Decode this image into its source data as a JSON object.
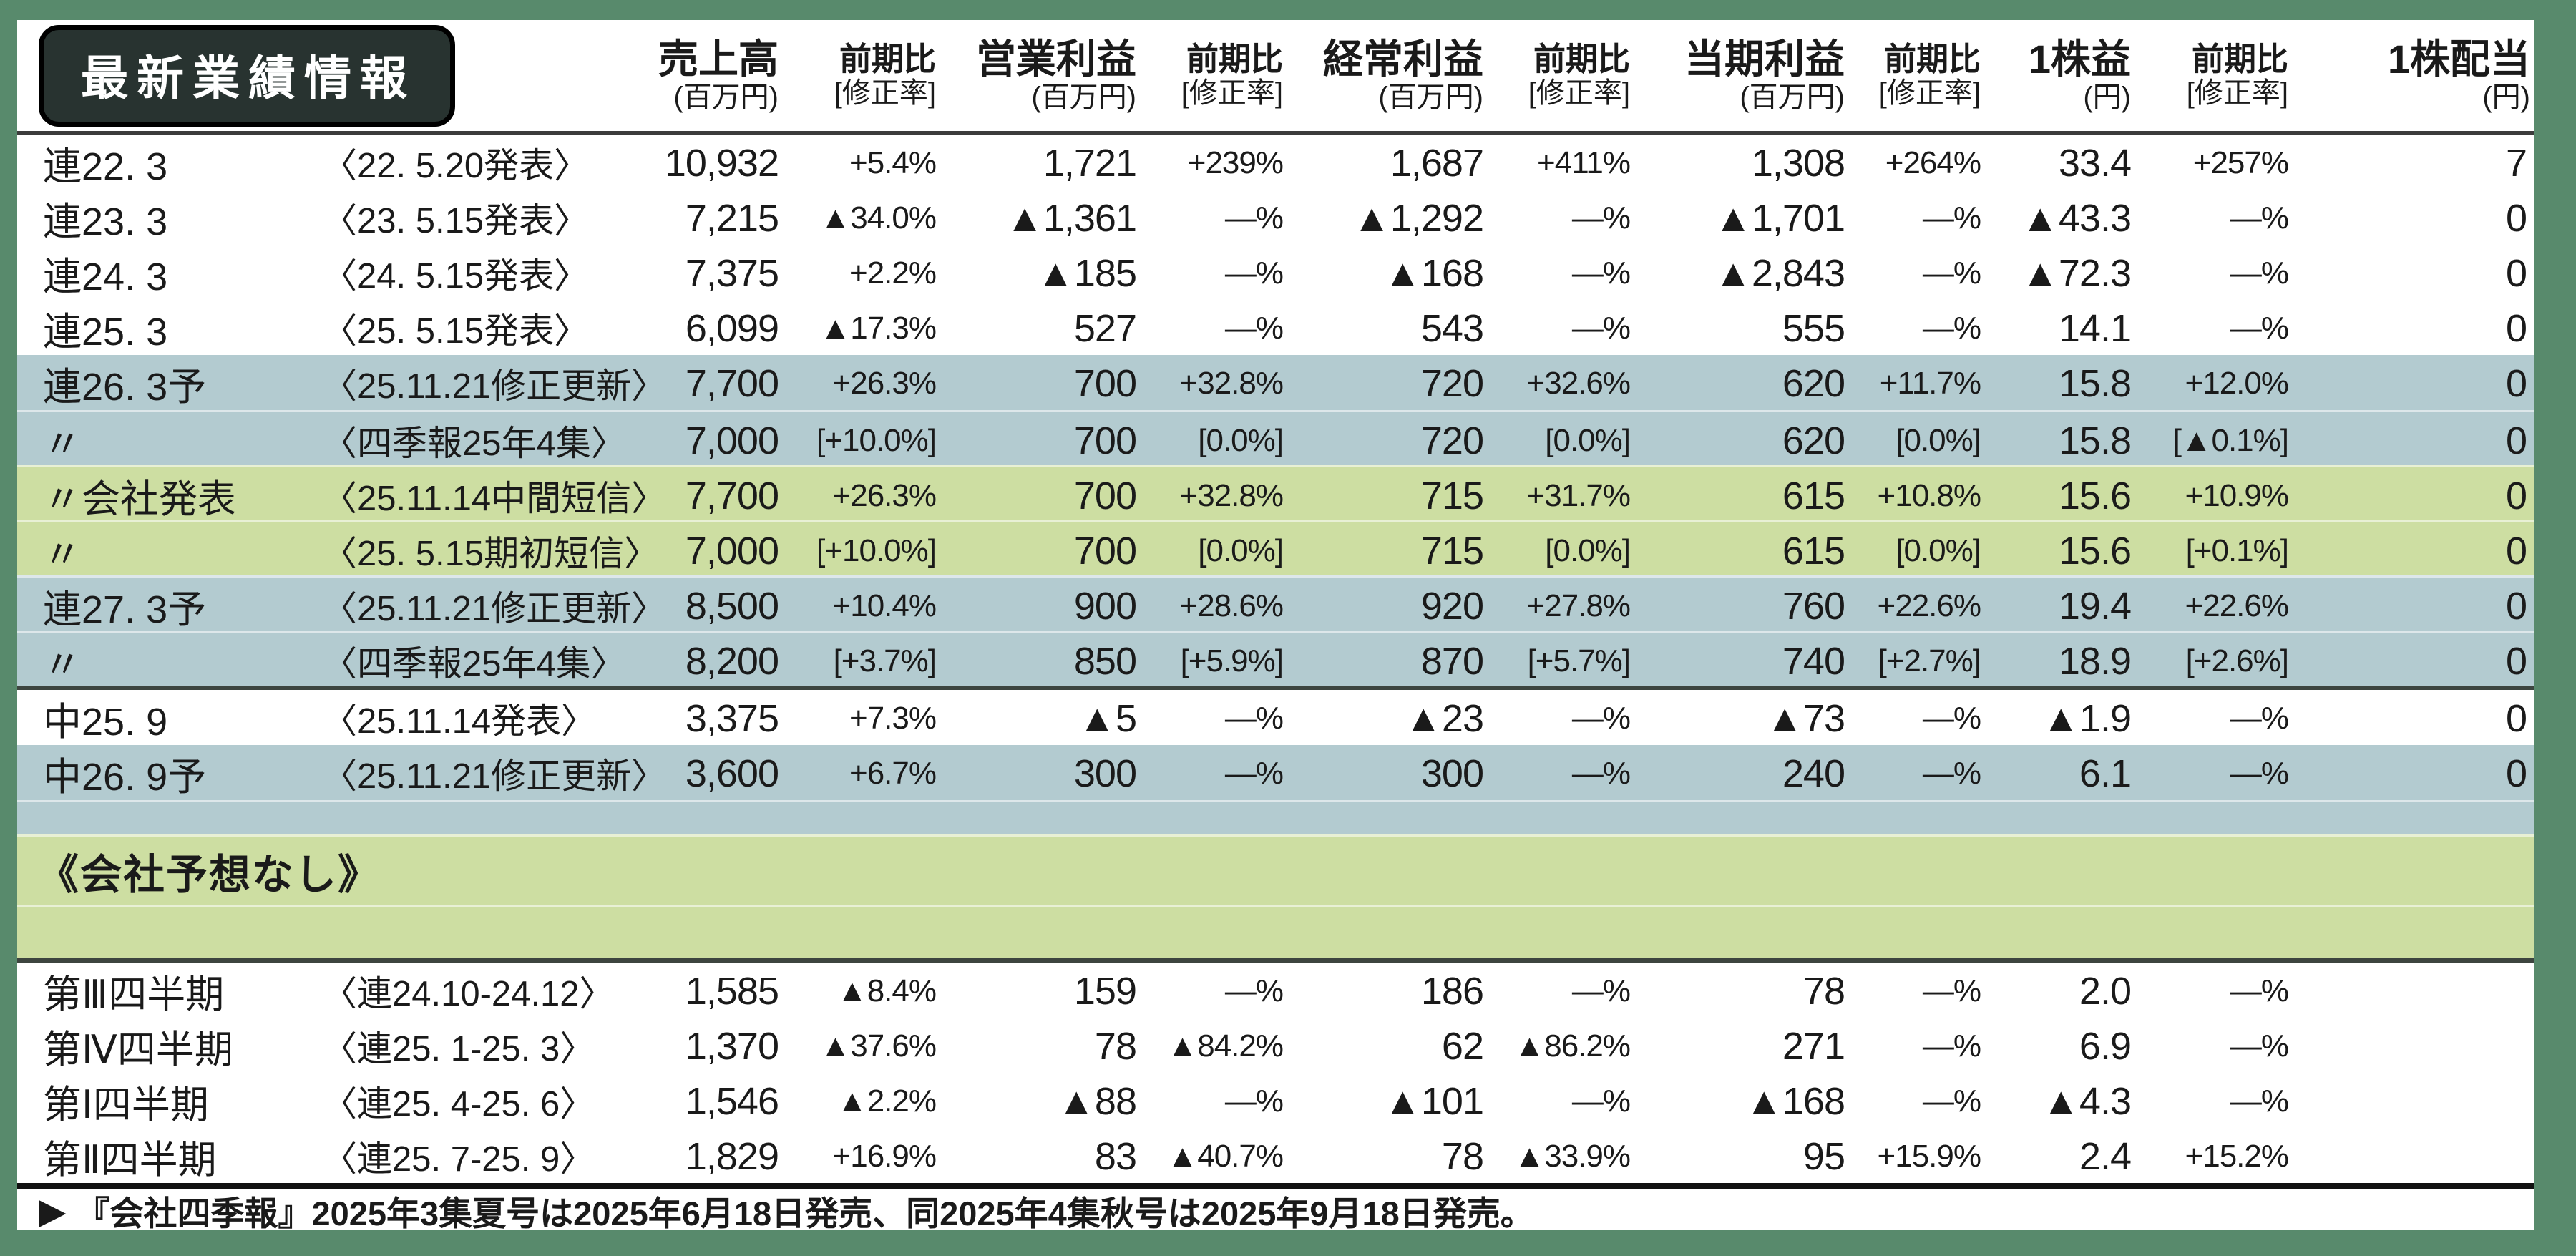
{
  "header": {
    "badge": "最新業績情報",
    "groups": [
      {
        "title": "売上高",
        "unit": "(百万円)"
      },
      {
        "title": "前期比",
        "unit": "[修正率]"
      },
      {
        "title": "営業利益",
        "unit": "(百万円)"
      },
      {
        "title": "前期比",
        "unit": "[修正率]"
      },
      {
        "title": "経常利益",
        "unit": "(百万円)"
      },
      {
        "title": "前期比",
        "unit": "[修正率]"
      },
      {
        "title": "当期利益",
        "unit": "(百万円)"
      },
      {
        "title": "前期比",
        "unit": "[修正率]"
      },
      {
        "title": "1株益",
        "unit": "(円)"
      },
      {
        "title": "前期比",
        "unit": "[修正率]"
      },
      {
        "title": "1株配当",
        "unit": "(円)"
      }
    ]
  },
  "rows": [
    {
      "label": "連22. 3",
      "date": "〈22. 5.20発表〉",
      "sales": "10,932",
      "sales_yoy": "+5.4%",
      "op": "1,721",
      "op_yoy": "+239%",
      "ord": "1,687",
      "ord_yoy": "+411%",
      "net": "1,308",
      "net_yoy": "+264%",
      "eps": "33.4",
      "eps_yoy": "+257%",
      "div": "7",
      "bg": "white"
    },
    {
      "label": "連23. 3",
      "date": "〈23. 5.15発表〉",
      "sales": "7,215",
      "sales_yoy": "▲34.0%",
      "op": "▲1,361",
      "op_yoy": "—%",
      "ord": "▲1,292",
      "ord_yoy": "—%",
      "net": "▲1,701",
      "net_yoy": "—%",
      "eps": "▲43.3",
      "eps_yoy": "—%",
      "div": "0",
      "bg": "white"
    },
    {
      "label": "連24. 3",
      "date": "〈24. 5.15発表〉",
      "sales": "7,375",
      "sales_yoy": "+2.2%",
      "op": "▲185",
      "op_yoy": "—%",
      "ord": "▲168",
      "ord_yoy": "—%",
      "net": "▲2,843",
      "net_yoy": "—%",
      "eps": "▲72.3",
      "eps_yoy": "—%",
      "div": "0",
      "bg": "white"
    },
    {
      "label": "連25. 3",
      "date": "〈25. 5.15発表〉",
      "sales": "6,099",
      "sales_yoy": "▲17.3%",
      "op": "527",
      "op_yoy": "—%",
      "ord": "543",
      "ord_yoy": "—%",
      "net": "555",
      "net_yoy": "—%",
      "eps": "14.1",
      "eps_yoy": "—%",
      "div": "0",
      "bg": "white"
    },
    {
      "label": "連26. 3予",
      "date": "〈25.11.21修正更新〉",
      "sales": "7,700",
      "sales_yoy": "+26.3%",
      "op": "700",
      "op_yoy": "+32.8%",
      "ord": "720",
      "ord_yoy": "+32.6%",
      "net": "620",
      "net_yoy": "+11.7%",
      "eps": "15.8",
      "eps_yoy": "+12.0%",
      "div": "0",
      "bg": "blue"
    },
    {
      "label": "〃",
      "date": "〈四季報25年4集〉",
      "sales": "7,000",
      "sales_yoy": "[+10.0%]",
      "op": "700",
      "op_yoy": "[0.0%]",
      "ord": "720",
      "ord_yoy": "[0.0%]",
      "net": "620",
      "net_yoy": "[0.0%]",
      "eps": "15.8",
      "eps_yoy": "[▲0.1%]",
      "div": "0",
      "bg": "blue",
      "sep": true
    },
    {
      "label": "〃会社発表",
      "date": "〈25.11.14中間短信〉",
      "sales": "7,700",
      "sales_yoy": "+26.3%",
      "op": "700",
      "op_yoy": "+32.8%",
      "ord": "715",
      "ord_yoy": "+31.7%",
      "net": "615",
      "net_yoy": "+10.8%",
      "eps": "15.6",
      "eps_yoy": "+10.9%",
      "div": "0",
      "bg": "green",
      "sep": true
    },
    {
      "label": "〃",
      "date": "〈25. 5.15期初短信〉",
      "sales": "7,000",
      "sales_yoy": "[+10.0%]",
      "op": "700",
      "op_yoy": "[0.0%]",
      "ord": "715",
      "ord_yoy": "[0.0%]",
      "net": "615",
      "net_yoy": "[0.0%]",
      "eps": "15.6",
      "eps_yoy": "[+0.1%]",
      "div": "0",
      "bg": "green",
      "sep": true
    },
    {
      "label": "連27. 3予",
      "date": "〈25.11.21修正更新〉",
      "sales": "8,500",
      "sales_yoy": "+10.4%",
      "op": "900",
      "op_yoy": "+28.6%",
      "ord": "920",
      "ord_yoy": "+27.8%",
      "net": "760",
      "net_yoy": "+22.6%",
      "eps": "19.4",
      "eps_yoy": "+22.6%",
      "div": "0",
      "bg": "blue",
      "sep": true
    },
    {
      "label": "〃",
      "date": "〈四季報25年4集〉",
      "sales": "8,200",
      "sales_yoy": "[+3.7%]",
      "op": "850",
      "op_yoy": "[+5.9%]",
      "ord": "870",
      "ord_yoy": "[+5.7%]",
      "net": "740",
      "net_yoy": "[+2.7%]",
      "eps": "18.9",
      "eps_yoy": "[+2.6%]",
      "div": "0",
      "bg": "blue",
      "sep": true
    },
    {
      "type": "sep",
      "kind": "dark"
    },
    {
      "label": "中25. 9",
      "date": "〈25.11.14発表〉",
      "sales": "3,375",
      "sales_yoy": "+7.3%",
      "op": "▲5",
      "op_yoy": "—%",
      "ord": "▲23",
      "ord_yoy": "—%",
      "net": "▲73",
      "net_yoy": "—%",
      "eps": "▲1.9",
      "eps_yoy": "—%",
      "div": "0",
      "bg": "white"
    },
    {
      "label": "中26. 9予",
      "date": "〈25.11.21修正更新〉",
      "sales": "3,600",
      "sales_yoy": "+6.7%",
      "op": "300",
      "op_yoy": "—%",
      "ord": "300",
      "ord_yoy": "—%",
      "net": "240",
      "net_yoy": "—%",
      "eps": "6.1",
      "eps_yoy": "—%",
      "div": "0",
      "bg": "blue"
    },
    {
      "type": "band",
      "variant": "sm",
      "bg": "blue",
      "sep": true
    },
    {
      "type": "note",
      "text": "《会社予想なし》",
      "bg": "green",
      "sep": true
    },
    {
      "type": "band",
      "variant": "lg",
      "bg": "green",
      "sep": true
    },
    {
      "type": "sep",
      "kind": "dark"
    },
    {
      "label": "第Ⅲ四半期",
      "date": "〈連24.10-24.12〉",
      "sales": "1,585",
      "sales_yoy": "▲8.4%",
      "op": "159",
      "op_yoy": "—%",
      "ord": "186",
      "ord_yoy": "—%",
      "net": "78",
      "net_yoy": "—%",
      "eps": "2.0",
      "eps_yoy": "—%",
      "div": "",
      "bg": "white"
    },
    {
      "label": "第Ⅳ四半期",
      "date": "〈連25. 1-25. 3〉",
      "sales": "1,370",
      "sales_yoy": "▲37.6%",
      "op": "78",
      "op_yoy": "▲84.2%",
      "ord": "62",
      "ord_yoy": "▲86.2%",
      "net": "271",
      "net_yoy": "—%",
      "eps": "6.9",
      "eps_yoy": "—%",
      "div": "",
      "bg": "white"
    },
    {
      "label": "第Ⅰ四半期",
      "date": "〈連25. 4-25. 6〉",
      "sales": "1,546",
      "sales_yoy": "▲2.2%",
      "op": "▲88",
      "op_yoy": "—%",
      "ord": "▲101",
      "ord_yoy": "—%",
      "net": "▲168",
      "net_yoy": "—%",
      "eps": "▲4.3",
      "eps_yoy": "—%",
      "div": "",
      "bg": "white"
    },
    {
      "label": "第Ⅱ四半期",
      "date": "〈連25. 7-25. 9〉",
      "sales": "1,829",
      "sales_yoy": "+16.9%",
      "op": "83",
      "op_yoy": "▲40.7%",
      "ord": "78",
      "ord_yoy": "▲33.9%",
      "net": "95",
      "net_yoy": "+15.9%",
      "eps": "2.4",
      "eps_yoy": "+15.2%",
      "div": "",
      "bg": "white"
    },
    {
      "type": "sep",
      "kind": "thick"
    }
  ],
  "footer": {
    "marker": "▶",
    "text": "『会社四季報』2025年3集夏号は2025年6月18日発売、同2025年4集秋号は2025年9月18日発売。"
  }
}
